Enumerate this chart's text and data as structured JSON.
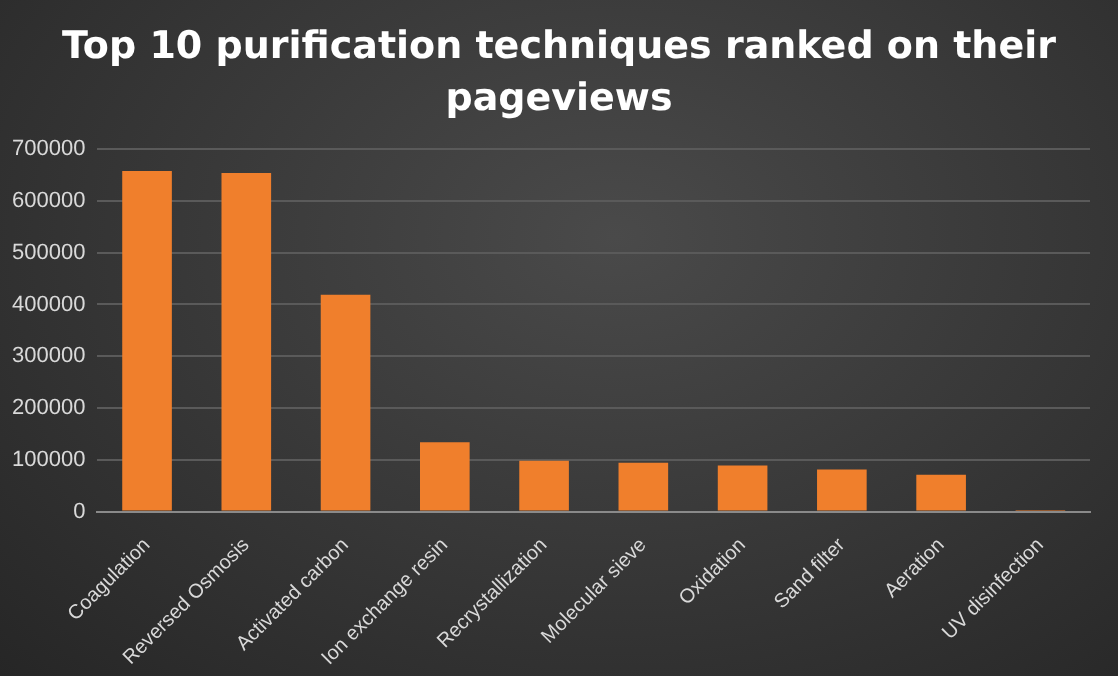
{
  "chart_data": {
    "type": "bar",
    "title": "Top 10 purification techniques ranked on their pageviews",
    "categories": [
      "Coagulation",
      "Reversed Osmosis",
      "Activated carbon",
      "Ion exchange resin",
      "Recrystallization",
      "Molecular sieve",
      "Oxidation",
      "Sand filter",
      "Aeration",
      "UV disinfection"
    ],
    "values": [
      658000,
      654000,
      419000,
      134000,
      98000,
      94000,
      89000,
      81000,
      71000,
      1000
    ],
    "color": "#f07f2c",
    "ylim": [
      0,
      700000
    ],
    "yticks": [
      0,
      100000,
      200000,
      300000,
      400000,
      500000,
      600000,
      700000
    ],
    "grid": "y",
    "legend": false
  }
}
